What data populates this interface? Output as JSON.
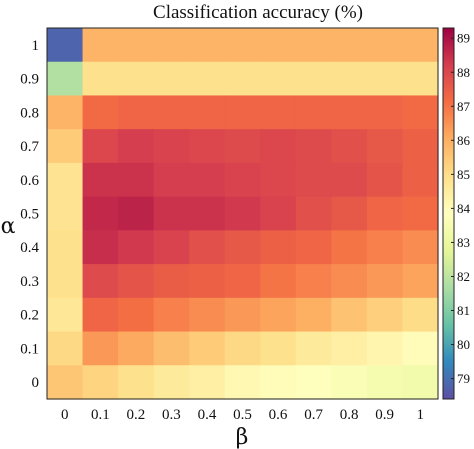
{
  "chart_data": {
    "type": "heatmap",
    "title": "Classification accuracy (%)",
    "xlabel": "β",
    "ylabel": "α",
    "x_categories": [
      "0",
      "0.1",
      "0.2",
      "0.3",
      "0.4",
      "0.5",
      "0.6",
      "0.7",
      "0.8",
      "0.9",
      "1"
    ],
    "y_categories": [
      "1",
      "0.9",
      "0.8",
      "0.7",
      "0.6",
      "0.5",
      "0.4",
      "0.3",
      "0.2",
      "0.1",
      "0"
    ],
    "values": [
      [
        78.8,
        85.9,
        85.9,
        85.9,
        85.9,
        85.9,
        85.9,
        85.9,
        85.9,
        85.9,
        85.9
      ],
      [
        81.8,
        84.9,
        84.9,
        84.9,
        84.9,
        84.9,
        84.9,
        84.9,
        84.9,
        84.9,
        84.9
      ],
      [
        85.9,
        87.2,
        87.3,
        87.3,
        87.3,
        87.3,
        87.3,
        87.3,
        87.3,
        87.3,
        87.2
      ],
      [
        85.4,
        88.0,
        88.2,
        88.1,
        88.0,
        87.9,
        88.0,
        87.9,
        87.8,
        87.6,
        87.4
      ],
      [
        84.8,
        88.4,
        88.4,
        88.2,
        88.2,
        88.1,
        88.0,
        87.9,
        87.9,
        87.7,
        87.4
      ],
      [
        84.8,
        88.6,
        88.7,
        88.4,
        88.4,
        88.3,
        88.1,
        87.8,
        87.6,
        87.3,
        87.2
      ],
      [
        84.9,
        88.5,
        88.3,
        88.1,
        87.8,
        87.6,
        87.4,
        87.3,
        87.0,
        86.8,
        86.6
      ],
      [
        84.9,
        87.9,
        87.7,
        87.5,
        87.4,
        87.3,
        87.0,
        86.8,
        86.6,
        86.4,
        86.2
      ],
      [
        84.7,
        87.3,
        87.1,
        86.8,
        86.6,
        86.4,
        86.2,
        86.0,
        85.6,
        85.3,
        85.0
      ],
      [
        85.1,
        86.4,
        86.1,
        85.7,
        85.4,
        85.1,
        84.9,
        84.6,
        84.4,
        84.2,
        84.0
      ],
      [
        85.5,
        85.2,
        84.9,
        84.6,
        84.4,
        84.1,
        84.0,
        83.8,
        83.6,
        83.4,
        83.3
      ]
    ],
    "colorbar": {
      "min": 78.4,
      "max": 89.3,
      "ticks": [
        "79",
        "80",
        "81",
        "82",
        "83",
        "84",
        "85",
        "86",
        "87",
        "88",
        "89"
      ],
      "colormap": "Spectral (reversed)",
      "stops": [
        "#5e4fa2",
        "#3288bd",
        "#66c2a5",
        "#abdda4",
        "#e6f598",
        "#ffffbf",
        "#fee08b",
        "#fdae61",
        "#f46d43",
        "#d53e4f",
        "#9e0142"
      ]
    },
    "grid": false
  }
}
